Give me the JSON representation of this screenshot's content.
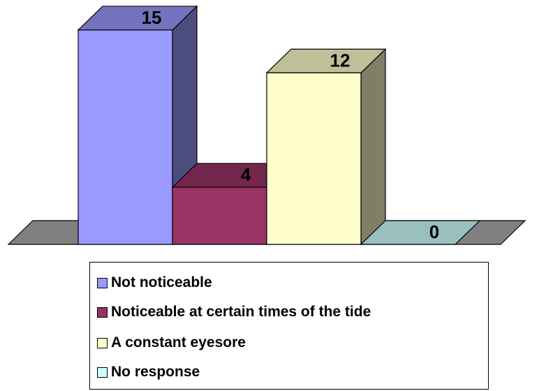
{
  "chart_data": {
    "type": "bar",
    "style": "3d",
    "categories": [
      "Not noticeable",
      "Noticeable at certain times of the tide",
      "A constant eyesore",
      "No response"
    ],
    "values": [
      15,
      4,
      12,
      0
    ],
    "data_labels": [
      "15",
      "4",
      "12",
      "0"
    ],
    "colors": {
      "front": [
        "#9999ff",
        "#993366",
        "#ffffcc",
        "#ccffff"
      ],
      "side": [
        "#4c4c7f",
        "#4c1933",
        "#7f7f66",
        "#667f7f"
      ],
      "top": [
        "#7373bf",
        "#73264c",
        "#bfbf99",
        "#99bfbf"
      ],
      "floor": "#808080"
    },
    "legend": {
      "position": "bottom",
      "items": [
        "Not noticeable",
        "Noticeable at certain times of the tide",
        "A constant eyesore",
        "No response"
      ]
    },
    "gridlines": false,
    "axes_visible": false
  }
}
